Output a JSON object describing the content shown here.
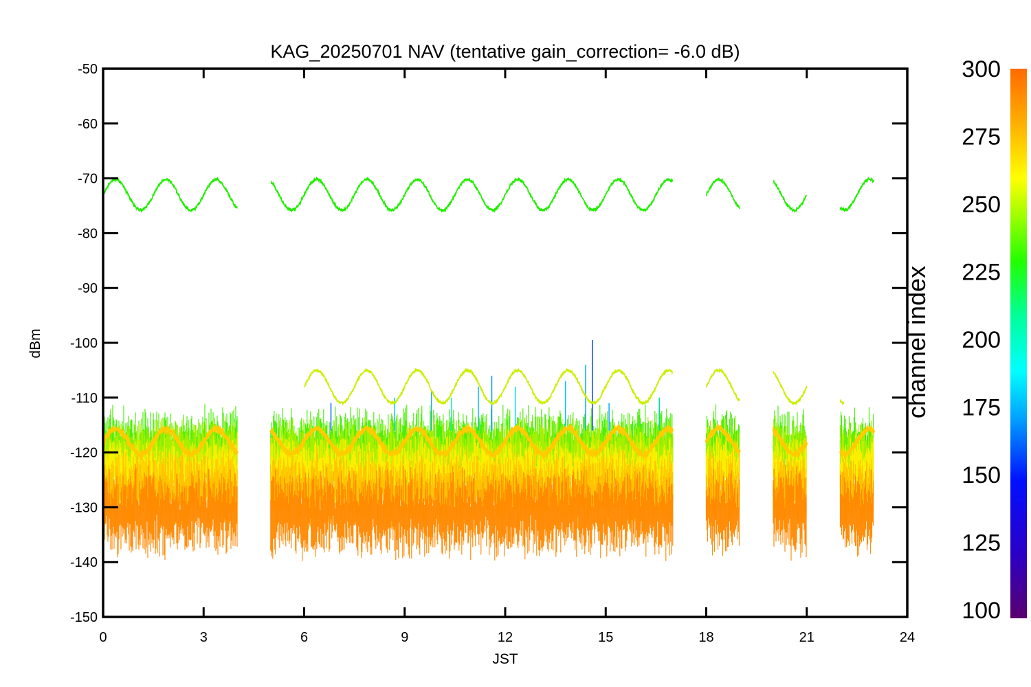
{
  "chart_data": {
    "type": "line",
    "title": "KAG_20250701 NAV (tentative gain_correction= -6.0 dB)",
    "xlabel": "JST",
    "ylabel": "dBm",
    "xlim": [
      0,
      24
    ],
    "ylim": [
      -150,
      -50
    ],
    "xticks": [
      "0",
      "3",
      "6",
      "9",
      "12",
      "15",
      "18",
      "21",
      "24"
    ],
    "yticks": [
      "-50",
      "-60",
      "-70",
      "-80",
      "-90",
      "-100",
      "-110",
      "-120",
      "-130",
      "-140",
      "-150"
    ],
    "grid": false,
    "data_segments_jst": [
      [
        0,
        4
      ],
      [
        5,
        17
      ],
      [
        18,
        19
      ],
      [
        20,
        21
      ],
      [
        22,
        23
      ]
    ],
    "series": [
      {
        "channel_index": 240,
        "color": "#22ee00",
        "description": "sinusoid",
        "y_center": -73.0,
        "y_amplitude": 2.8,
        "period_hours": 1.5,
        "segments": [
          [
            0,
            4
          ],
          [
            5,
            17
          ],
          [
            18,
            19
          ],
          [
            20,
            21
          ],
          [
            22,
            23
          ]
        ]
      },
      {
        "channel_index": 265,
        "color": "#ccee00",
        "description": "sinusoid",
        "y_center": -108.0,
        "y_amplitude": 3.0,
        "period_hours": 1.5,
        "segments": [
          [
            6,
            17
          ],
          [
            18,
            19
          ],
          [
            20,
            21
          ],
          [
            22,
            22.1
          ]
        ]
      },
      {
        "channel_index": 280,
        "color": "#ffcc00",
        "description": "sinusoid",
        "y_center": -118.0,
        "y_amplitude": 2.3,
        "period_hours": 1.5,
        "segments": [
          [
            0,
            4
          ],
          [
            5,
            17
          ],
          [
            18,
            19
          ],
          [
            20,
            21
          ],
          [
            22,
            23
          ]
        ]
      }
    ],
    "noise_bands": [
      {
        "channel_index": 240,
        "color": "#44ee00",
        "y_range": [
          -124,
          -114
        ]
      },
      {
        "channel_index": 255,
        "color": "#aaee00",
        "y_range": [
          -125,
          -116
        ]
      },
      {
        "channel_index": 275,
        "color": "#ffee00",
        "y_range": [
          -128,
          -119
        ]
      },
      {
        "channel_index": 285,
        "color": "#ffc000",
        "y_range": [
          -132,
          -122
        ]
      },
      {
        "channel_index": 295,
        "color": "#ff8800",
        "y_range": [
          -137,
          -125
        ]
      }
    ],
    "spikes": [
      {
        "x": 14.6,
        "y_top": -99.5,
        "color": "#0044ff"
      },
      {
        "x": 14.4,
        "y_top": -104,
        "color": "#00aaff"
      },
      {
        "x": 13.8,
        "y_top": -107,
        "color": "#00ccff"
      },
      {
        "x": 11.6,
        "y_top": -106,
        "color": "#0099ff"
      },
      {
        "x": 11.2,
        "y_top": -108,
        "color": "#00bbff"
      },
      {
        "x": 12.3,
        "y_top": -108,
        "color": "#00ddff"
      },
      {
        "x": 9.8,
        "y_top": -109,
        "color": "#22aaff"
      },
      {
        "x": 8.7,
        "y_top": -110,
        "color": "#00ccee"
      },
      {
        "x": 15.1,
        "y_top": -111,
        "color": "#00aaff"
      },
      {
        "x": 16.6,
        "y_top": -110,
        "color": "#00ddaa"
      },
      {
        "x": 6.8,
        "y_top": -111,
        "color": "#0066ff"
      },
      {
        "x": 10.4,
        "y_top": -110,
        "color": "#00eecc"
      }
    ],
    "colorbar": {
      "label": "channel index",
      "range": [
        100,
        300
      ],
      "ticks": [
        "300",
        "275",
        "250",
        "225",
        "200",
        "175",
        "150",
        "125",
        "100"
      ]
    }
  }
}
